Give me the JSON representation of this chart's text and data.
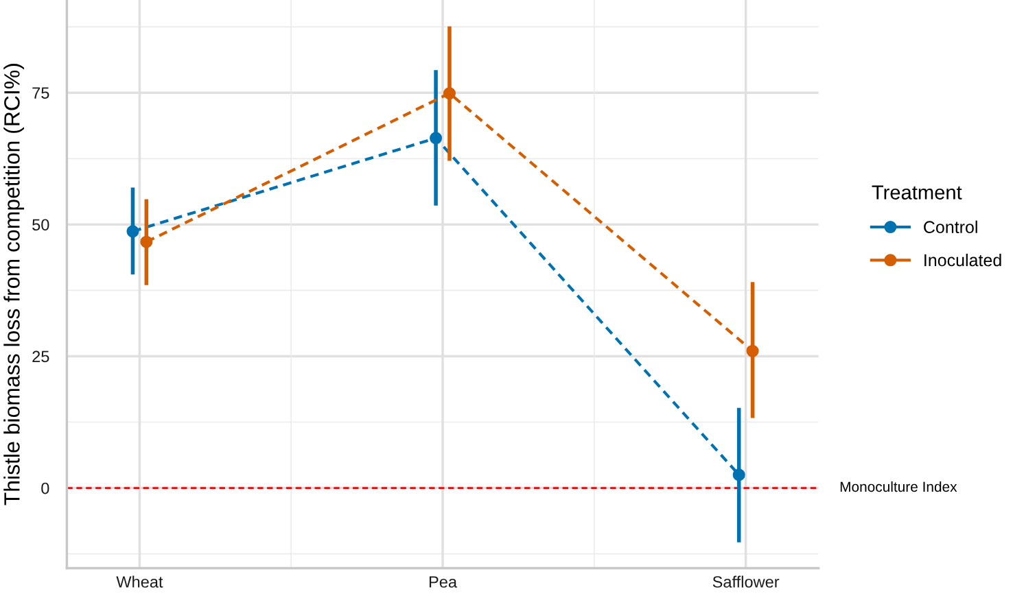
{
  "chart_data": {
    "type": "line",
    "ylabel": "Thistle biomass loss from competition (RCI%)",
    "legend_title": "Treatment",
    "categories": [
      "Wheat",
      "Pea",
      "Safflower"
    ],
    "series": [
      {
        "name": "Control",
        "color": "#0072b2",
        "values": [
          48.7,
          66.4,
          2.5
        ],
        "errors": [
          [
            40.5,
            57.0
          ],
          [
            53.6,
            79.3
          ],
          [
            -10.3,
            15.2
          ]
        ]
      },
      {
        "name": "Inoculated",
        "color": "#d55e00",
        "values": [
          46.7,
          74.9,
          26.0
        ],
        "errors": [
          [
            38.5,
            54.8
          ],
          [
            62.1,
            87.6
          ],
          [
            13.3,
            39.1
          ]
        ]
      }
    ],
    "ylim": [
      -15.2,
      92.6
    ],
    "yticks": [
      0,
      25,
      50,
      75
    ],
    "ref_lines": [
      {
        "axis": "y",
        "value": 0,
        "label": "Monoculture Index",
        "color": "#ff0000",
        "line_style": "dashed"
      }
    ],
    "marker": "circle",
    "line_style": "dashed",
    "grid": true,
    "legend": "right"
  }
}
